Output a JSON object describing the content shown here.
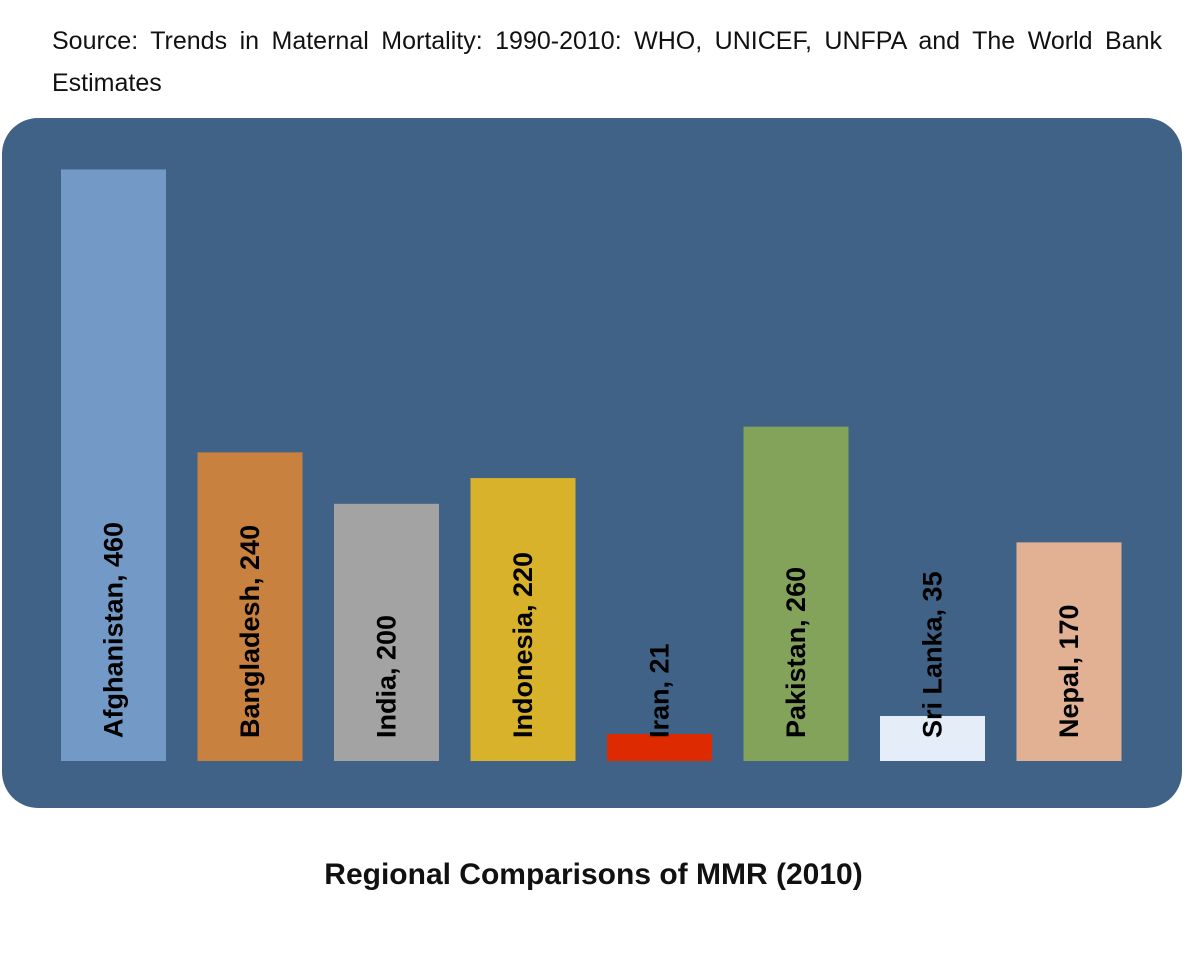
{
  "source_note": "Source: Trends in Maternal Mortality: 1990-2010: WHO, UNICEF, UNFPA and The World Bank Estimates",
  "chart_data": {
    "type": "bar",
    "title": "Regional Comparisons of MMR (2010)",
    "xlabel": "",
    "ylabel": "",
    "ylim": [
      0,
      500
    ],
    "grid": false,
    "legend": "none",
    "background_color": "#416287",
    "categories": [
      "Afghanistan",
      "Bangladesh",
      "India",
      "Indonesia",
      "Iran",
      "Pakistan",
      "Sri Lanka",
      "Nepal"
    ],
    "values": [
      460,
      240,
      200,
      220,
      21,
      260,
      35,
      170
    ],
    "data_labels": [
      "Afghanistan, 460",
      "Bangladesh, 240",
      "India, 200",
      "Indonesia, 220",
      "Iran, 21",
      "Pakistan, 260",
      "Sri Lanka, 35",
      "Nepal, 170"
    ],
    "colors": [
      "#7399c6",
      "#c8813f",
      "#a3a3a3",
      "#d9b22b",
      "#dd2a00",
      "#83a35a",
      "#e5eef8",
      "#e2b194"
    ]
  }
}
